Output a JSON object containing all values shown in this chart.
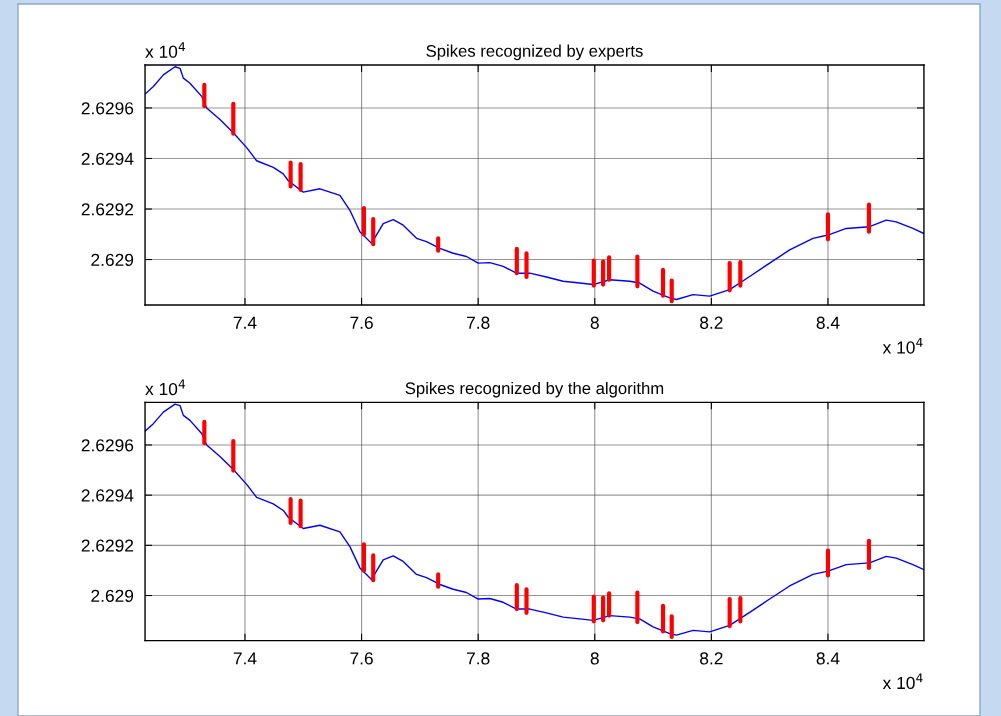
{
  "chart_data": [
    {
      "type": "line",
      "title": "Spikes recognized by experts",
      "annotations": [
        "x 10$^{4}$",
        "x 10$^{4}$"
      ],
      "xlim": [
        7.2286,
        8.5646
      ],
      "ylim": [
        2.62882,
        2.62977
      ],
      "xticks": [
        7.4,
        7.6,
        7.8,
        8,
        8.2,
        8.4
      ],
      "yticks": [
        2.629,
        2.6292,
        2.6294,
        2.6296
      ],
      "grid": true,
      "line_style": "solid",
      "series": [
        {
          "color": "#0000ff",
          "x": [
            7.2286,
            7.2429,
            7.26,
            7.28,
            7.2886,
            7.2943,
            7.3057,
            7.3257,
            7.3343,
            7.3571,
            7.38,
            7.4029,
            7.42,
            7.4486,
            7.4657,
            7.4743,
            7.5,
            7.5286,
            7.5629,
            7.58,
            7.5971,
            7.6171,
            7.6371,
            7.6543,
            7.6714,
            7.6943,
            7.7114,
            7.7343,
            7.7571,
            7.78,
            7.8,
            7.82,
            7.8429,
            7.8657,
            7.8886,
            7.9171,
            7.9457,
            7.9743,
            7.9971,
            8.0257,
            8.06,
            8.0771,
            8.1,
            8.1286,
            8.14,
            8.1686,
            8.1971,
            8.2314,
            8.2657,
            8.3,
            8.3343,
            8.3743,
            8.4,
            8.4314,
            8.4714,
            8.5,
            8.5171,
            8.5457,
            8.5646
          ],
          "values": [
            2.629655,
            2.629685,
            2.629731,
            2.629763,
            2.629757,
            2.629718,
            2.629698,
            2.629646,
            2.6296,
            2.629554,
            2.629502,
            2.629443,
            2.629391,
            2.629365,
            2.629339,
            2.629312,
            2.629267,
            2.62928,
            2.629254,
            2.629195,
            2.62911,
            2.629064,
            2.629142,
            2.629158,
            2.629136,
            2.629084,
            2.629071,
            2.629044,
            2.629025,
            2.629012,
            2.628986,
            2.628988,
            2.628973,
            2.628946,
            2.628946,
            2.628931,
            2.628914,
            2.628907,
            2.628901,
            2.62892,
            2.628914,
            2.628907,
            2.628875,
            2.628848,
            2.628842,
            2.628861,
            2.628855,
            2.628881,
            2.628933,
            2.628986,
            2.629038,
            2.629084,
            2.629097,
            2.629123,
            2.62913,
            2.629156,
            2.629149,
            2.629123,
            2.629103
          ]
        },
        {
          "color": "#ff0000",
          "x": [
            7.3303,
            7.3303,
            null,
            7.38,
            7.38,
            null,
            7.4783,
            7.4783,
            null,
            7.4954,
            7.4954,
            null,
            7.604,
            7.604,
            null,
            7.62,
            7.62,
            null,
            7.7314,
            7.7314,
            null,
            7.8663,
            7.8663,
            null,
            7.8829,
            7.8829,
            null,
            7.9983,
            7.9983,
            null,
            8.0143,
            8.0143,
            null,
            8.0246,
            8.0246,
            null,
            8.0731,
            8.0731,
            null,
            8.1171,
            8.1171,
            null,
            8.132,
            8.132,
            null,
            8.2314,
            8.2314,
            null,
            8.2497,
            8.2497,
            null,
            8.4,
            8.4,
            null,
            8.4703,
            8.4703
          ],
          "values": [
            2.629692,
            2.629607,
            null,
            2.629616,
            2.629498,
            null,
            2.629384,
            2.629289,
            null,
            2.629378,
            2.629276,
            null,
            2.629204,
            2.629099,
            null,
            2.62916,
            2.629061,
            null,
            2.629084,
            2.629035,
            null,
            2.629042,
            2.628946,
            null,
            2.629025,
            2.628931,
            null,
            2.628996,
            2.628897,
            null,
            2.628992,
            2.628901,
            null,
            2.629009,
            2.62892,
            null,
            2.629012,
            2.628894,
            null,
            2.628959,
            2.628857,
            null,
            2.628917,
            2.628835,
            null,
            2.628986,
            2.628878,
            null,
            2.62899,
            2.628897,
            null,
            2.629179,
            2.62908,
            null,
            2.629218,
            2.62911
          ]
        }
      ]
    },
    {
      "type": "line",
      "title": "Spikes recognized by the algorithm",
      "annotations": [
        "x 10$^{4}$",
        "x 10$^{4}$"
      ],
      "xlim": [
        7.2286,
        8.5646
      ],
      "ylim": [
        2.62882,
        2.62977
      ],
      "xticks": [
        7.4,
        7.6,
        7.8,
        8,
        8.2,
        8.4
      ],
      "yticks": [
        2.629,
        2.6292,
        2.6294,
        2.6296
      ],
      "grid": true,
      "line_style": "solid",
      "series": [
        {
          "color": "#0000ff",
          "x": [
            7.2286,
            7.2429,
            7.26,
            7.28,
            7.2886,
            7.2943,
            7.3057,
            7.3257,
            7.3343,
            7.3571,
            7.38,
            7.4029,
            7.42,
            7.4486,
            7.4657,
            7.4743,
            7.5,
            7.5286,
            7.5629,
            7.58,
            7.5971,
            7.6171,
            7.6371,
            7.6543,
            7.6714,
            7.6943,
            7.7114,
            7.7343,
            7.7571,
            7.78,
            7.8,
            7.82,
            7.8429,
            7.8657,
            7.8886,
            7.9171,
            7.9457,
            7.9743,
            7.9971,
            8.0257,
            8.06,
            8.0771,
            8.1,
            8.1286,
            8.14,
            8.1686,
            8.1971,
            8.2314,
            8.2657,
            8.3,
            8.3343,
            8.3743,
            8.4,
            8.4314,
            8.4714,
            8.5,
            8.5171,
            8.5457,
            8.5646
          ],
          "values": [
            2.629655,
            2.629685,
            2.629731,
            2.629763,
            2.629757,
            2.629718,
            2.629698,
            2.629646,
            2.6296,
            2.629554,
            2.629502,
            2.629443,
            2.629391,
            2.629365,
            2.629339,
            2.629312,
            2.629267,
            2.62928,
            2.629254,
            2.629195,
            2.62911,
            2.629064,
            2.629142,
            2.629158,
            2.629136,
            2.629084,
            2.629071,
            2.629044,
            2.629025,
            2.629012,
            2.628986,
            2.628988,
            2.628973,
            2.628946,
            2.628946,
            2.628931,
            2.628914,
            2.628907,
            2.628901,
            2.62892,
            2.628914,
            2.628907,
            2.628875,
            2.628848,
            2.628842,
            2.628861,
            2.628855,
            2.628881,
            2.628933,
            2.628986,
            2.629038,
            2.629084,
            2.629097,
            2.629123,
            2.62913,
            2.629156,
            2.629149,
            2.629123,
            2.629103
          ]
        },
        {
          "color": "#ff0000",
          "x": [
            7.3303,
            7.3303,
            null,
            7.38,
            7.38,
            null,
            7.4783,
            7.4783,
            null,
            7.4954,
            7.4954,
            null,
            7.604,
            7.604,
            null,
            7.62,
            7.62,
            null,
            7.7314,
            7.7314,
            null,
            7.8663,
            7.8663,
            null,
            7.8829,
            7.8829,
            null,
            7.9983,
            7.9983,
            null,
            8.0143,
            8.0143,
            null,
            8.0246,
            8.0246,
            null,
            8.0731,
            8.0731,
            null,
            8.1171,
            8.1171,
            null,
            8.132,
            8.132,
            null,
            8.2314,
            8.2314,
            null,
            8.2497,
            8.2497,
            null,
            8.4,
            8.4,
            null,
            8.4703,
            8.4703
          ],
          "values": [
            2.629692,
            2.629607,
            null,
            2.629616,
            2.629498,
            null,
            2.629384,
            2.629289,
            null,
            2.629378,
            2.629276,
            null,
            2.629204,
            2.629099,
            null,
            2.62916,
            2.629061,
            null,
            2.629084,
            2.629035,
            null,
            2.629042,
            2.628946,
            null,
            2.629025,
            2.628931,
            null,
            2.628996,
            2.628897,
            null,
            2.628992,
            2.628901,
            null,
            2.629009,
            2.62892,
            null,
            2.629012,
            2.628894,
            null,
            2.628959,
            2.628857,
            null,
            2.628917,
            2.628835,
            null,
            2.628986,
            2.628878,
            null,
            2.62899,
            2.628897,
            null,
            2.629179,
            2.62908,
            null,
            2.629218,
            2.62911
          ]
        }
      ]
    }
  ]
}
